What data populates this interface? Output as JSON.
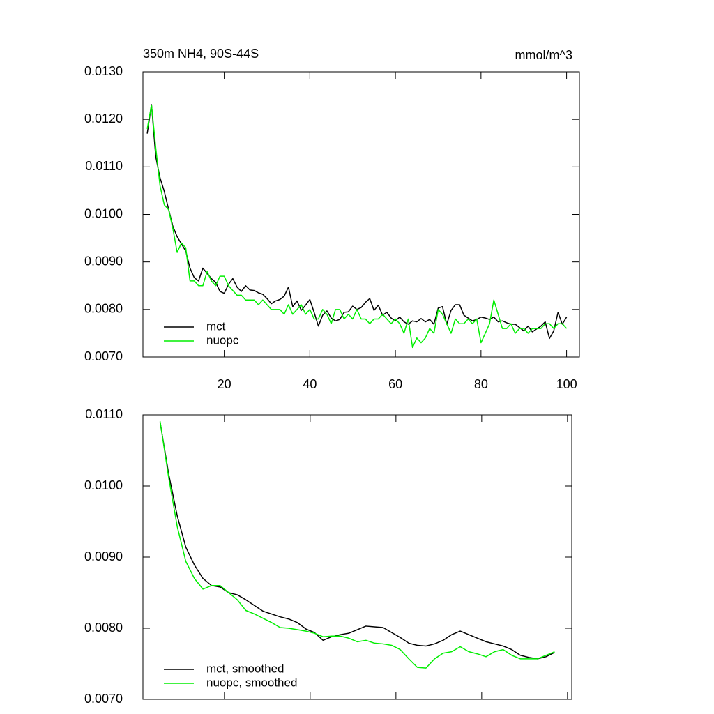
{
  "chart_data": [
    {
      "type": "line",
      "title": "350m NH4, 90S-44S",
      "units": "mmol/m^3",
      "x": [
        2,
        3,
        4,
        5,
        6,
        7,
        8,
        9,
        10,
        11,
        12,
        13,
        14,
        15,
        16,
        17,
        18,
        19,
        20,
        21,
        22,
        23,
        24,
        25,
        26,
        27,
        28,
        29,
        30,
        31,
        32,
        33,
        34,
        35,
        36,
        37,
        38,
        39,
        40,
        41,
        42,
        43,
        44,
        45,
        46,
        47,
        48,
        49,
        50,
        51,
        52,
        53,
        54,
        55,
        56,
        57,
        58,
        59,
        60,
        61,
        62,
        63,
        64,
        65,
        66,
        67,
        68,
        69,
        70,
        71,
        72,
        73,
        74,
        75,
        76,
        77,
        78,
        79,
        80,
        81,
        82,
        83,
        84,
        85,
        86,
        87,
        88,
        89,
        90,
        91,
        92,
        93,
        94,
        95,
        96,
        97,
        98,
        99,
        100
      ],
      "series": [
        {
          "name": "mct",
          "color": "#000000",
          "values": [
            0.0117,
            0.01231,
            0.01121,
            0.01077,
            0.01048,
            0.01011,
            0.00975,
            0.00953,
            0.00938,
            0.00923,
            0.00887,
            0.00867,
            0.0086,
            0.00887,
            0.00876,
            0.00865,
            0.00857,
            0.00838,
            0.00834,
            0.00853,
            0.00865,
            0.00847,
            0.00838,
            0.0085,
            0.00841,
            0.0084,
            0.00835,
            0.00832,
            0.00823,
            0.00812,
            0.00818,
            0.00821,
            0.00828,
            0.00847,
            0.00806,
            0.00818,
            0.00798,
            0.00809,
            0.00821,
            0.00794,
            0.00765,
            0.00788,
            0.00797,
            0.00782,
            0.00776,
            0.00779,
            0.00794,
            0.00795,
            0.00807,
            0.008,
            0.00804,
            0.00815,
            0.00823,
            0.00798,
            0.00809,
            0.00788,
            0.00794,
            0.00782,
            0.00776,
            0.00784,
            0.00774,
            0.00769,
            0.00776,
            0.00774,
            0.00781,
            0.00774,
            0.00779,
            0.00769,
            0.00803,
            0.00806,
            0.00769,
            0.00798,
            0.0081,
            0.0081,
            0.00788,
            0.00782,
            0.00776,
            0.00779,
            0.00784,
            0.00782,
            0.00779,
            0.00784,
            0.00774,
            0.00776,
            0.00772,
            0.00769,
            0.00769,
            0.00762,
            0.00755,
            0.00765,
            0.00753,
            0.00759,
            0.00765,
            0.00774,
            0.00739,
            0.00755,
            0.00794,
            0.00769,
            0.00784
          ]
        },
        {
          "name": "nuopc",
          "color": "#00ee00",
          "values": [
            0.0118,
            0.0123,
            0.0114,
            0.0106,
            0.0102,
            0.0101,
            0.0097,
            0.0092,
            0.0094,
            0.0093,
            0.0086,
            0.0086,
            0.0085,
            0.0085,
            0.0088,
            0.0086,
            0.0085,
            0.0087,
            0.0087,
            0.0085,
            0.0084,
            0.0083,
            0.0083,
            0.0082,
            0.0082,
            0.0082,
            0.0081,
            0.0082,
            0.0081,
            0.008,
            0.008,
            0.008,
            0.0079,
            0.0081,
            0.0079,
            0.008,
            0.0081,
            0.0079,
            0.008,
            0.0078,
            0.0078,
            0.008,
            0.0079,
            0.0077,
            0.008,
            0.008,
            0.0078,
            0.0079,
            0.0078,
            0.008,
            0.0078,
            0.0078,
            0.0077,
            0.0078,
            0.0078,
            0.0079,
            0.0078,
            0.0077,
            0.0078,
            0.0077,
            0.0075,
            0.0078,
            0.0072,
            0.0074,
            0.0073,
            0.0074,
            0.0076,
            0.0075,
            0.008,
            0.0079,
            0.0077,
            0.0075,
            0.0078,
            0.0077,
            0.0077,
            0.0078,
            0.0077,
            0.0078,
            0.0073,
            0.0075,
            0.0077,
            0.0082,
            0.0079,
            0.0076,
            0.0076,
            0.0077,
            0.0075,
            0.0076,
            0.0076,
            0.0075,
            0.0076,
            0.0076,
            0.0076,
            0.0077,
            0.0077,
            0.0076,
            0.0077,
            0.0077,
            0.0076
          ]
        }
      ],
      "xlim": [
        1,
        103
      ],
      "xticks": [
        20,
        40,
        60,
        80,
        100
      ],
      "xtick_labels": true,
      "ylim": [
        0.007,
        0.013
      ],
      "yticks": [
        {
          "value": 0.007,
          "label": "0.0070"
        },
        {
          "value": 0.008,
          "label": "0.0080"
        },
        {
          "value": 0.009,
          "label": "0.0090"
        },
        {
          "value": 0.01,
          "label": "0.0100"
        },
        {
          "value": 0.011,
          "label": "0.0110"
        },
        {
          "value": 0.012,
          "label": "0.0120"
        },
        {
          "value": 0.013,
          "label": "0.0130"
        }
      ],
      "legend": "lower left"
    },
    {
      "type": "line",
      "x": [
        5,
        7,
        9,
        11,
        13,
        15,
        17,
        19,
        21,
        23,
        25,
        27,
        29,
        31,
        33,
        35,
        37,
        39,
        41,
        43,
        45,
        47,
        49,
        51,
        53,
        55,
        57,
        59,
        61,
        63,
        65,
        67,
        69,
        71,
        73,
        75,
        77,
        79,
        81,
        83,
        85,
        87,
        89,
        91,
        93,
        95,
        97
      ],
      "series": [
        {
          "name": "mct, smoothed",
          "color": "#000000",
          "values": [
            0.0109,
            0.01017,
            0.00958,
            0.00914,
            0.00889,
            0.0087,
            0.0086,
            0.00858,
            0.0085,
            0.00847,
            0.0084,
            0.00832,
            0.00824,
            0.0082,
            0.00816,
            0.00813,
            0.00808,
            0.00799,
            0.00794,
            0.00783,
            0.00788,
            0.00791,
            0.00793,
            0.00798,
            0.00803,
            0.00802,
            0.00801,
            0.00794,
            0.00787,
            0.00779,
            0.00776,
            0.00775,
            0.00778,
            0.00783,
            0.00791,
            0.00796,
            0.00791,
            0.00786,
            0.00781,
            0.00778,
            0.00775,
            0.0077,
            0.00762,
            0.00759,
            0.00757,
            0.0076,
            0.00766
          ]
        },
        {
          "name": "nuopc, smoothed",
          "color": "#00ee00",
          "values": [
            0.01091,
            0.01012,
            0.00943,
            0.00894,
            0.0087,
            0.00855,
            0.0086,
            0.0086,
            0.0085,
            0.0084,
            0.00825,
            0.0082,
            0.00814,
            0.00808,
            0.00801,
            0.008,
            0.00798,
            0.00796,
            0.00793,
            0.00788,
            0.00789,
            0.00789,
            0.00786,
            0.00781,
            0.00783,
            0.00779,
            0.00778,
            0.00776,
            0.0077,
            0.00757,
            0.00745,
            0.00744,
            0.00757,
            0.00765,
            0.00767,
            0.00774,
            0.00767,
            0.00764,
            0.0076,
            0.00767,
            0.0077,
            0.00762,
            0.00757,
            0.00757,
            0.00757,
            0.00762,
            0.00767
          ]
        }
      ],
      "xlim": [
        1,
        101
      ],
      "xticks": [
        20,
        40,
        60,
        80,
        100
      ],
      "xtick_labels": false,
      "ylim": [
        0.007,
        0.011
      ],
      "yticks": [
        {
          "value": 0.007,
          "label": "0.0070"
        },
        {
          "value": 0.008,
          "label": "0.0080"
        },
        {
          "value": 0.009,
          "label": "0.0090"
        },
        {
          "value": 0.01,
          "label": "0.0100"
        },
        {
          "value": 0.011,
          "label": "0.0110"
        }
      ],
      "legend": "lower left"
    }
  ]
}
